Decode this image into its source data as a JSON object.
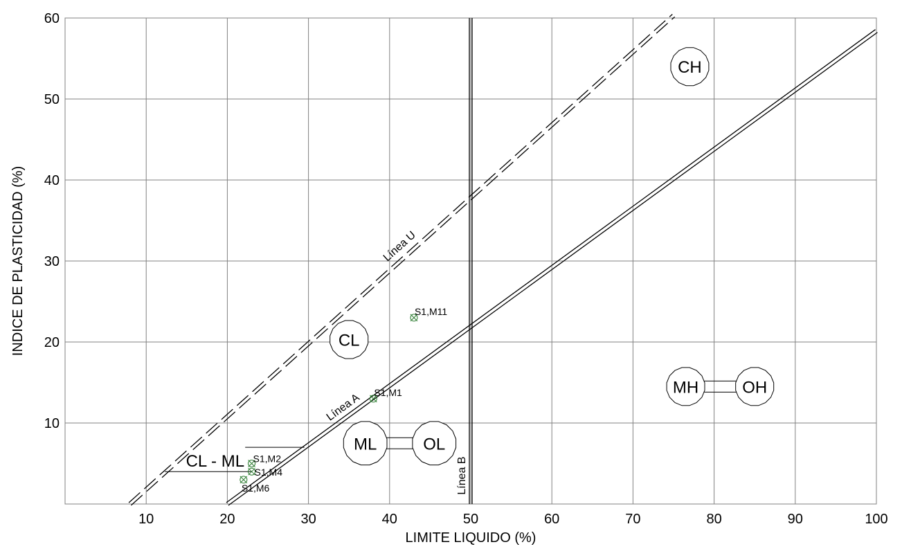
{
  "chart_data": {
    "type": "scatter",
    "title": "",
    "xlabel": "LIMITE LIQUIDO (%)",
    "ylabel": "INDICE DE PLASTICIDAD (%)",
    "xlim": [
      0,
      100
    ],
    "ylim": [
      0,
      60
    ],
    "x_ticks": [
      10,
      20,
      30,
      40,
      50,
      60,
      70,
      80,
      90,
      100
    ],
    "y_ticks": [
      10,
      20,
      30,
      40,
      50,
      60
    ],
    "grid": true,
    "series": [
      {
        "points": [
          {
            "label": "S1,M11",
            "x": 43,
            "y": 23
          },
          {
            "label": "S1,M1",
            "x": 38,
            "y": 13
          },
          {
            "label": "S1,M2",
            "x": 23,
            "y": 5
          },
          {
            "label": "S1,M4",
            "x": 23,
            "y": 4
          },
          {
            "label": "S1,M6",
            "x": 22,
            "y": 3
          }
        ]
      }
    ],
    "reference_lines": [
      {
        "label": "Línea A",
        "style": "double-solid",
        "from": [
          20,
          0
        ],
        "to": [
          100,
          58.4
        ]
      },
      {
        "label": "Línea U",
        "style": "double-dashed",
        "from": [
          8,
          0
        ],
        "to": [
          75,
          60.3
        ]
      },
      {
        "label": "Línea B",
        "style": "double-solid-vertical",
        "x": 50
      }
    ],
    "zones": [
      {
        "label": "CH",
        "x": 77,
        "y": 54
      },
      {
        "label": "CL",
        "x": 35,
        "y": 20.3
      },
      {
        "label": "MH",
        "x": 76.5,
        "y": 14.5
      },
      {
        "label": "OH",
        "x": 85,
        "y": 14.5
      },
      {
        "label": "ML",
        "x": 37,
        "y": 7.5
      },
      {
        "label": "OL",
        "x": 45.5,
        "y": 7.5
      },
      {
        "label": "CL - ML",
        "x": 18.5,
        "y": 5.3
      }
    ]
  }
}
